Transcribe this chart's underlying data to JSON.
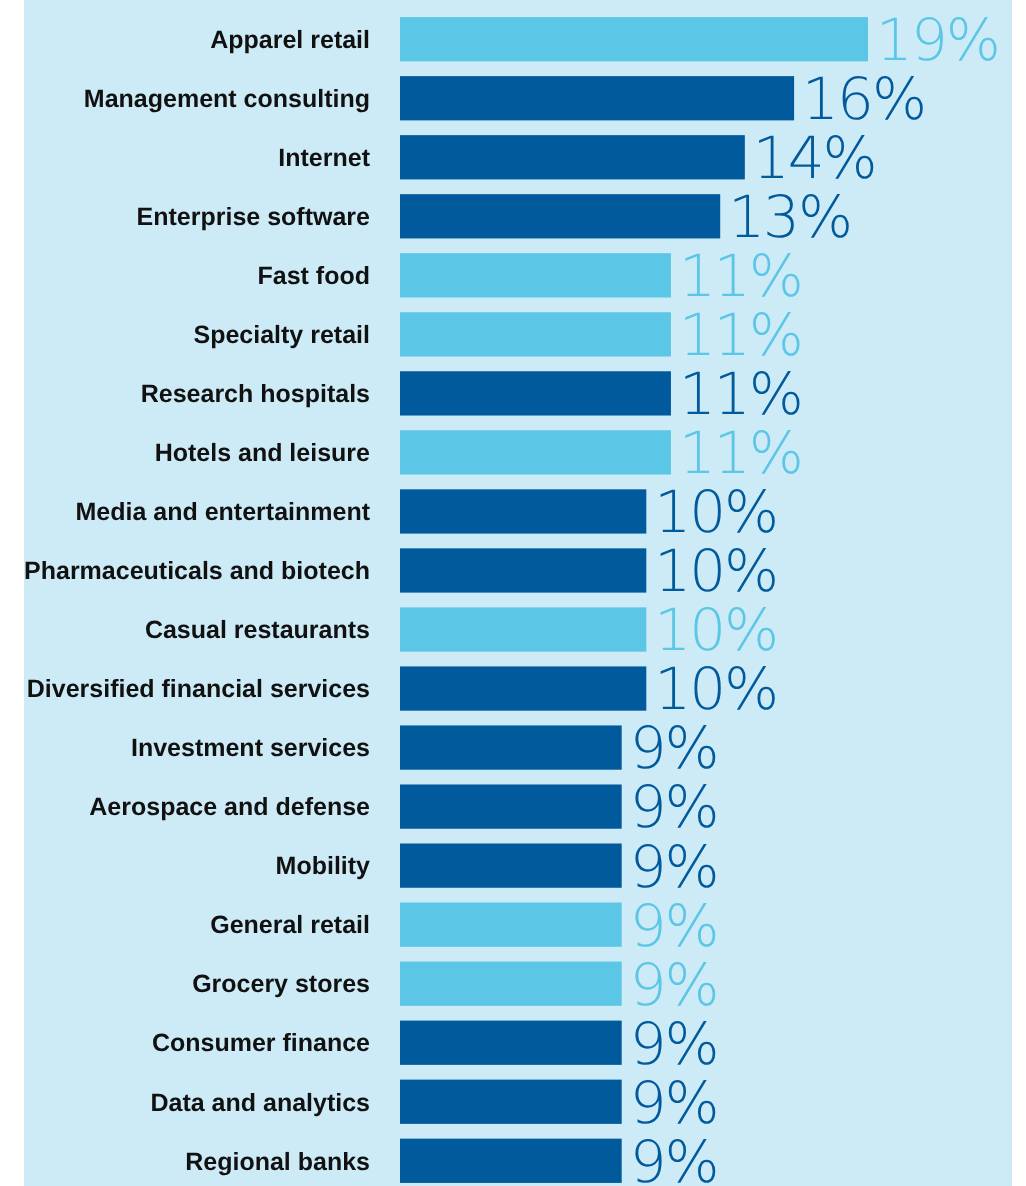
{
  "chart_data": {
    "type": "bar",
    "orientation": "horizontal",
    "xlim": [
      0,
      19
    ],
    "categories": [
      "Apparel retail",
      "Management consulting",
      "Internet",
      "Enterprise software",
      "Fast food",
      "Specialty retail",
      "Research hospitals",
      "Hotels and leisure",
      "Media and entertainment",
      "Pharmaceuticals and biotech",
      "Casual restaurants",
      "Diversified financial services",
      "Investment services",
      "Aerospace and defense",
      "Mobility",
      "General retail",
      "Grocery stores",
      "Consumer finance",
      "Data and analytics",
      "Regional banks"
    ],
    "values": [
      19,
      16,
      14,
      13,
      11,
      11,
      11,
      11,
      10,
      10,
      10,
      10,
      9,
      9,
      9,
      9,
      9,
      9,
      9,
      9
    ],
    "colors": [
      "#5bc6e6",
      "#005a9c",
      "#005a9c",
      "#005a9c",
      "#5bc6e6",
      "#5bc6e6",
      "#005a9c",
      "#5bc6e6",
      "#005a9c",
      "#005a9c",
      "#5bc6e6",
      "#005a9c",
      "#005a9c",
      "#005a9c",
      "#005a9c",
      "#5bc6e6",
      "#5bc6e6",
      "#005a9c",
      "#005a9c",
      "#005a9c"
    ],
    "value_labels": [
      "19%",
      "16%",
      "14%",
      "13%",
      "11%",
      "11%",
      "11%",
      "11%",
      "10%",
      "10%",
      "10%",
      "10%",
      "9%",
      "9%",
      "9%",
      "9%",
      "9%",
      "9%",
      "9%",
      "9%"
    ]
  }
}
